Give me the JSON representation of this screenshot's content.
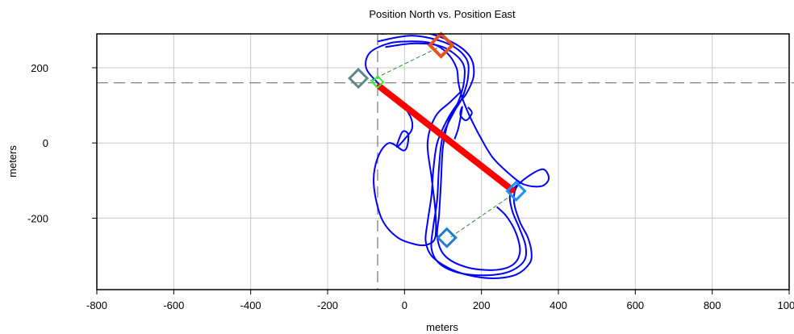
{
  "chart_data": {
    "type": "scatter",
    "title": "Position North vs. Position East",
    "xlabel": "meters",
    "ylabel": "meters",
    "xlim": [
      -800,
      1000
    ],
    "ylim": [
      -390,
      290
    ],
    "xticks": [
      -800,
      -600,
      -400,
      -200,
      0,
      200,
      400,
      600,
      800,
      1000
    ],
    "yticks": [
      200,
      0,
      -200
    ],
    "x_tick_labels": [
      "-800",
      "-600",
      "-400",
      "-200",
      "0",
      "200",
      "400",
      "600",
      "800",
      "1000"
    ],
    "y_tick_labels": [
      "200",
      "0",
      "-200"
    ],
    "grid": true,
    "crosshair": {
      "x": -70,
      "y": 160
    },
    "colors": {
      "track": "#0000ff",
      "segment": "#ff0000",
      "guide": "#2e8b2e",
      "marker_orange": "#e8531a",
      "marker_gray": "#5f8a8b",
      "marker_green": "#33ee33",
      "marker_cyan": "#1e90ff",
      "marker_blue": "#1e7bd6",
      "grid": "#c8c8c8",
      "crosshair": "#7f7f7f"
    },
    "series": [
      {
        "kind": "track",
        "points": [
          [
            -60,
            290
          ],
          [
            40,
            295
          ],
          [
            120,
            270
          ],
          [
            170,
            230
          ],
          [
            180,
            180
          ],
          [
            160,
            130
          ],
          [
            135,
            100
          ],
          [
            110,
            60
          ],
          [
            85,
            0
          ],
          [
            75,
            -70
          ],
          [
            70,
            -140
          ],
          [
            60,
            -210
          ],
          [
            55,
            -260
          ],
          [
            70,
            -300
          ],
          [
            110,
            -330
          ],
          [
            160,
            -350
          ],
          [
            230,
            -360
          ],
          [
            290,
            -350
          ],
          [
            325,
            -320
          ],
          [
            330,
            -290
          ],
          [
            320,
            -250
          ],
          [
            300,
            -210
          ],
          [
            285,
            -160
          ],
          [
            290,
            -120
          ],
          [
            320,
            -90
          ],
          [
            360,
            -70
          ],
          [
            375,
            -95
          ],
          [
            355,
            -115
          ],
          [
            310,
            -110
          ],
          [
            270,
            -80
          ],
          [
            230,
            -40
          ],
          [
            200,
            10
          ],
          [
            170,
            70
          ],
          [
            150,
            120
          ],
          [
            140,
            160
          ],
          [
            135,
            200
          ],
          [
            110,
            240
          ],
          [
            70,
            265
          ],
          [
            20,
            270
          ],
          [
            -40,
            265
          ],
          [
            -90,
            240
          ],
          [
            -100,
            200
          ],
          [
            -70,
            160
          ],
          [
            -30,
            120
          ],
          [
            10,
            80
          ],
          [
            20,
            40
          ],
          [
            0,
            10
          ],
          [
            -20,
            -10
          ],
          [
            -5,
            30
          ],
          [
            10,
            20
          ],
          [
            0,
            -20
          ],
          [
            -40,
            0
          ],
          [
            -70,
            -40
          ],
          [
            -80,
            -110
          ],
          [
            -60,
            -200
          ],
          [
            -20,
            -250
          ],
          [
            30,
            -270
          ],
          [
            60,
            -270
          ],
          [
            80,
            -250
          ],
          [
            80,
            -180
          ],
          [
            70,
            -90
          ],
          [
            60,
            0
          ],
          [
            80,
            70
          ],
          [
            120,
            110
          ],
          [
            150,
            140
          ]
        ]
      },
      {
        "kind": "track",
        "points": [
          [
            -70,
            270
          ],
          [
            20,
            285
          ],
          [
            110,
            265
          ],
          [
            160,
            225
          ],
          [
            165,
            175
          ],
          [
            150,
            120
          ],
          [
            130,
            85
          ],
          [
            100,
            20
          ],
          [
            90,
            -60
          ],
          [
            85,
            -150
          ],
          [
            75,
            -220
          ],
          [
            70,
            -280
          ],
          [
            90,
            -320
          ],
          [
            140,
            -345
          ],
          [
            210,
            -352
          ],
          [
            270,
            -343
          ],
          [
            310,
            -315
          ],
          [
            315,
            -275
          ],
          [
            300,
            -230
          ],
          [
            280,
            -180
          ],
          [
            275,
            -135
          ],
          [
            300,
            -105
          ]
        ]
      },
      {
        "kind": "track",
        "points": [
          [
            -50,
            255
          ],
          [
            30,
            265
          ],
          [
            100,
            255
          ],
          [
            150,
            215
          ],
          [
            155,
            165
          ],
          [
            140,
            110
          ],
          [
            115,
            60
          ],
          [
            100,
            -10
          ],
          [
            95,
            -100
          ],
          [
            90,
            -190
          ],
          [
            85,
            -250
          ],
          [
            105,
            -300
          ],
          [
            160,
            -330
          ],
          [
            230,
            -338
          ],
          [
            280,
            -325
          ],
          [
            300,
            -290
          ],
          [
            290,
            -240
          ],
          [
            265,
            -195
          ],
          [
            240,
            -170
          ]
        ]
      },
      {
        "kind": "track",
        "points": [
          [
            165,
            95
          ],
          [
            175,
            80
          ],
          [
            160,
            60
          ],
          [
            145,
            75
          ],
          [
            150,
            95
          ],
          [
            140,
            40
          ],
          [
            130,
            10
          ]
        ]
      }
    ],
    "segment": {
      "start": [
        -65,
        150
      ],
      "end": [
        280,
        -125
      ]
    },
    "guides": [
      {
        "start": [
          -90,
          165
        ],
        "end": [
          90,
          255
        ]
      },
      {
        "start": [
          120,
          -250
        ],
        "end": [
          270,
          -145
        ]
      }
    ],
    "markers": [
      {
        "x": 95,
        "y": 260,
        "shape": "diamond",
        "color_key": "marker_orange",
        "size": "large"
      },
      {
        "x": -120,
        "y": 172,
        "shape": "diamond",
        "color_key": "marker_gray",
        "size": "medium"
      },
      {
        "x": -70,
        "y": 162,
        "shape": "diamond",
        "color_key": "marker_green",
        "size": "small"
      },
      {
        "x": 290,
        "y": -128,
        "shape": "diamond",
        "color_key": "marker_cyan",
        "size": "medium"
      },
      {
        "x": 110,
        "y": -252,
        "shape": "diamond",
        "color_key": "marker_blue",
        "size": "medium"
      }
    ]
  }
}
